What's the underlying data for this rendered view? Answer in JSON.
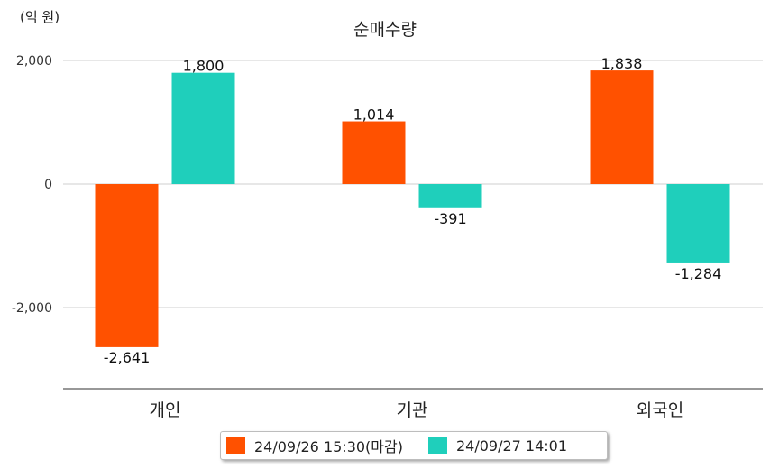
{
  "unit_label": "(억 원)",
  "chart_data": {
    "type": "bar",
    "title": "순매수량",
    "categories": [
      "개인",
      "기관",
      "외국인"
    ],
    "series": [
      {
        "name": "24/09/26 15:30(마감)",
        "color": "#ff5100",
        "values": [
          -2641,
          1014,
          1838
        ],
        "labels": [
          "-2,641",
          "1,014",
          "1,838"
        ]
      },
      {
        "name": "24/09/27 14:01",
        "color": "#1fcfbb",
        "values": [
          1800,
          -391,
          -1284
        ],
        "labels": [
          "1,800",
          "-391",
          "-1,284"
        ]
      }
    ],
    "y_ticks": [
      2000,
      0,
      -2000
    ],
    "y_tick_labels": [
      "2,000",
      "0",
      "-2,000"
    ],
    "ylim": [
      -3300,
      2000
    ],
    "grid": true,
    "legend_position": "bottom"
  }
}
